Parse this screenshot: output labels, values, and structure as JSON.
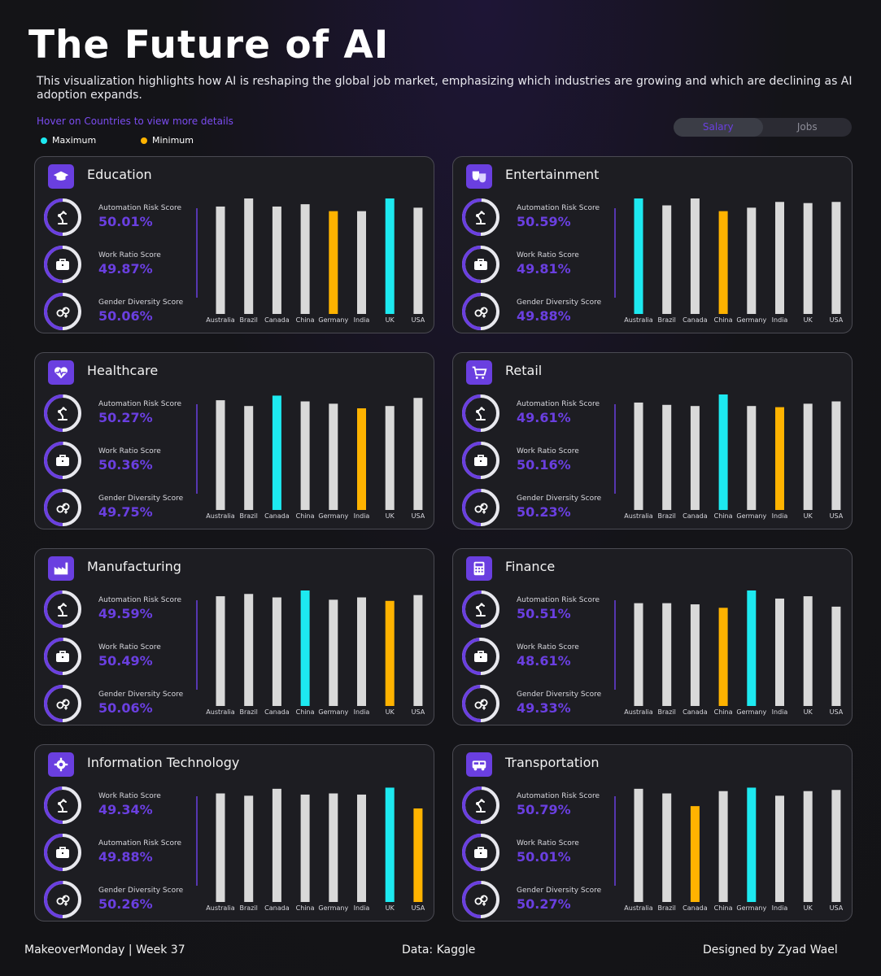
{
  "header": {
    "title": "The Future of AI",
    "subtitle": "This visualization highlights how AI is reshaping the global job market, emphasizing which industries are growing and which are declining as AI adoption expands.",
    "hover_hint": "Hover on Countries to view more details",
    "legend_max": "Maximum",
    "legend_min": "Minimum"
  },
  "toggle": {
    "salary": "Salary",
    "jobs": "Jobs"
  },
  "colors": {
    "max": "#1de9f0",
    "min": "#ffb300",
    "bar": "#d9d9d9",
    "accent": "#6a3fe0"
  },
  "cards": [
    {
      "title": "Education",
      "icon": "graduation-cap-icon",
      "metrics": [
        {
          "label": "Automation Risk Score",
          "value": "50.01%",
          "icon": "robot-arm-icon"
        },
        {
          "label": "Work Ratio Score",
          "value": "49.87%",
          "icon": "briefcase-icon"
        },
        {
          "label": "Gender Diversity Score",
          "value": "50.06%",
          "icon": "gender-icon"
        }
      ]
    },
    {
      "title": "Entertainment",
      "icon": "theater-masks-icon",
      "metrics": [
        {
          "label": "Automation Risk Score",
          "value": "50.59%",
          "icon": "robot-arm-icon"
        },
        {
          "label": "Work Ratio Score",
          "value": "49.81%",
          "icon": "briefcase-icon"
        },
        {
          "label": "Gender Diversity Score",
          "value": "49.88%",
          "icon": "gender-icon"
        }
      ]
    },
    {
      "title": "Healthcare",
      "icon": "heart-pulse-icon",
      "metrics": [
        {
          "label": "Automation Risk Score",
          "value": "50.27%",
          "icon": "robot-arm-icon"
        },
        {
          "label": "Work Ratio Score",
          "value": "50.36%",
          "icon": "briefcase-icon"
        },
        {
          "label": "Gender Diversity Score",
          "value": "49.75%",
          "icon": "gender-icon"
        }
      ]
    },
    {
      "title": "Retail",
      "icon": "shopping-cart-icon",
      "metrics": [
        {
          "label": "Automation Risk Score",
          "value": "49.61%",
          "icon": "robot-arm-icon"
        },
        {
          "label": "Work Ratio Score",
          "value": "50.16%",
          "icon": "briefcase-icon"
        },
        {
          "label": "Gender Diversity Score",
          "value": "50.23%",
          "icon": "gender-icon"
        }
      ]
    },
    {
      "title": "Manufacturing",
      "icon": "factory-icon",
      "metrics": [
        {
          "label": "Automation Risk Score",
          "value": "49.59%",
          "icon": "robot-arm-icon"
        },
        {
          "label": "Work Ratio Score",
          "value": "50.49%",
          "icon": "briefcase-icon"
        },
        {
          "label": "Gender Diversity Score",
          "value": "50.06%",
          "icon": "gender-icon"
        }
      ]
    },
    {
      "title": "Finance",
      "icon": "calculator-icon",
      "metrics": [
        {
          "label": "Automation Risk Score",
          "value": "50.51%",
          "icon": "robot-arm-icon"
        },
        {
          "label": "Work Ratio Score",
          "value": "48.61%",
          "icon": "briefcase-icon"
        },
        {
          "label": "Gender Diversity Score",
          "value": "49.33%",
          "icon": "gender-icon"
        }
      ]
    },
    {
      "title": "Information Technology",
      "icon": "it-gear-icon",
      "metrics": [
        {
          "label": "Work Ratio Score",
          "value": "49.34%",
          "icon": "robot-arm-icon"
        },
        {
          "label": "Automation Risk Score",
          "value": "49.88%",
          "icon": "briefcase-icon"
        },
        {
          "label": "Gender Diversity Score",
          "value": "50.26%",
          "icon": "gender-icon"
        }
      ]
    },
    {
      "title": "Transportation",
      "icon": "vehicle-icon",
      "metrics": [
        {
          "label": "Automation Risk Score",
          "value": "50.79%",
          "icon": "robot-arm-icon"
        },
        {
          "label": "Work Ratio Score",
          "value": "50.01%",
          "icon": "briefcase-icon"
        },
        {
          "label": "Gender Diversity Score",
          "value": "50.27%",
          "icon": "gender-icon"
        }
      ]
    }
  ],
  "chart_data": [
    {
      "type": "bar",
      "title": "Education",
      "categories": [
        "Australia",
        "Brazil",
        "Canada",
        "China",
        "Germany",
        "India",
        "UK",
        "USA"
      ],
      "values": [
        93,
        100,
        93,
        95,
        89,
        89,
        100,
        92
      ],
      "highlight_max": "UK",
      "highlight_min": "Germany",
      "ylim": [
        0,
        100
      ]
    },
    {
      "type": "bar",
      "title": "Entertainment",
      "categories": [
        "Australia",
        "Brazil",
        "Canada",
        "China",
        "Germany",
        "India",
        "UK",
        "USA"
      ],
      "values": [
        100,
        94,
        100,
        89,
        92,
        97,
        96,
        97
      ],
      "highlight_max": "Australia",
      "highlight_min": "China",
      "ylim": [
        0,
        100
      ]
    },
    {
      "type": "bar",
      "title": "Healthcare",
      "categories": [
        "Australia",
        "Brazil",
        "Canada",
        "China",
        "Germany",
        "India",
        "UK",
        "USA"
      ],
      "values": [
        95,
        90,
        99,
        94,
        92,
        88,
        90,
        97
      ],
      "highlight_max": "Canada",
      "highlight_min": "India",
      "ylim": [
        0,
        100
      ]
    },
    {
      "type": "bar",
      "title": "Retail",
      "categories": [
        "Australia",
        "Brazil",
        "Canada",
        "China",
        "Germany",
        "India",
        "UK",
        "USA"
      ],
      "values": [
        93,
        91,
        90,
        100,
        90,
        89,
        92,
        94
      ],
      "highlight_max": "China",
      "highlight_min": "India",
      "ylim": [
        0,
        100
      ]
    },
    {
      "type": "bar",
      "title": "Manufacturing",
      "categories": [
        "Australia",
        "Brazil",
        "Canada",
        "China",
        "Germany",
        "India",
        "UK",
        "USA"
      ],
      "values": [
        95,
        97,
        94,
        100,
        92,
        94,
        91,
        96
      ],
      "highlight_max": "China",
      "highlight_min": "UK",
      "ylim": [
        0,
        100
      ]
    },
    {
      "type": "bar",
      "title": "Finance",
      "categories": [
        "Australia",
        "Brazil",
        "Canada",
        "China",
        "Germany",
        "India",
        "UK",
        "USA"
      ],
      "values": [
        89,
        89,
        88,
        85,
        100,
        93,
        95,
        86
      ],
      "highlight_max": "Germany",
      "highlight_min": "China",
      "ylim": [
        0,
        100
      ]
    },
    {
      "type": "bar",
      "title": "Information Technology",
      "categories": [
        "Australia",
        "Brazil",
        "Canada",
        "China",
        "Germany",
        "India",
        "UK",
        "USA"
      ],
      "values": [
        94,
        92,
        98,
        93,
        94,
        93,
        99,
        81
      ],
      "highlight_max": "UK",
      "highlight_min": "USA",
      "ylim": [
        0,
        100
      ]
    },
    {
      "type": "bar",
      "title": "Transportation",
      "categories": [
        "Australia",
        "Brazil",
        "Canada",
        "China",
        "Germany",
        "India",
        "UK",
        "USA"
      ],
      "values": [
        98,
        94,
        83,
        96,
        99,
        92,
        96,
        97
      ],
      "highlight_max": "Germany",
      "highlight_min": "Canada",
      "ylim": [
        0,
        100
      ]
    }
  ],
  "footer": {
    "left": "MakeoverMonday | Week 37",
    "center": "Data: Kaggle",
    "right": "Designed by Zyad Wael"
  }
}
